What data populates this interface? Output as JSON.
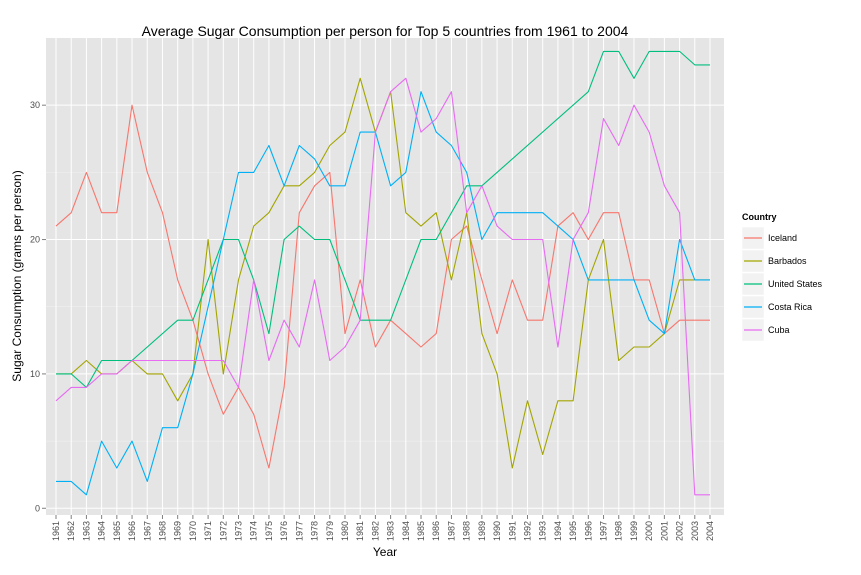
{
  "chart_data": {
    "type": "line",
    "title": "Average Sugar Consumption per person for Top 5 countries from 1961 to 2004",
    "xlabel": "Year",
    "ylabel": "Sugar Consumption (grams per person)",
    "ylim": [
      -0.5,
      35
    ],
    "yticks": [
      0,
      10,
      20,
      30
    ],
    "grid": true,
    "legend_title": "Country",
    "legend_position": "right",
    "x": [
      "1961",
      "1962",
      "1963",
      "1964",
      "1965",
      "1966",
      "1967",
      "1968",
      "1969",
      "1970",
      "1971",
      "1972",
      "1973",
      "1974",
      "1975",
      "1976",
      "1977",
      "1978",
      "1979",
      "1980",
      "1981",
      "1982",
      "1983",
      "1984",
      "1985",
      "1986",
      "1987",
      "1988",
      "1989",
      "1990",
      "1991",
      "1992",
      "1993",
      "1994",
      "1995",
      "1996",
      "1997",
      "1998",
      "1999",
      "2000",
      "2001",
      "2002",
      "2003",
      "2004"
    ],
    "series": [
      {
        "name": "Iceland",
        "color": "#F8766D",
        "values": [
          21,
          22,
          25,
          22,
          22,
          30,
          25,
          22,
          17,
          14,
          10,
          7,
          9,
          7,
          3,
          9,
          22,
          24,
          25,
          13,
          17,
          12,
          14,
          13,
          12,
          13,
          20,
          21,
          17,
          13,
          17,
          14,
          14,
          21,
          22,
          20,
          22,
          22,
          17,
          17,
          13,
          14,
          14,
          14
        ]
      },
      {
        "name": "Barbados",
        "color": "#A3A500",
        "values": [
          10,
          10,
          11,
          10,
          10,
          11,
          10,
          10,
          8,
          10,
          20,
          10,
          17,
          21,
          22,
          24,
          24,
          25,
          27,
          28,
          32,
          28,
          31,
          22,
          21,
          22,
          17,
          22,
          13,
          10,
          3,
          8,
          4,
          8,
          8,
          17,
          20,
          11,
          12,
          12,
          13,
          17,
          17,
          17
        ]
      },
      {
        "name": "United States",
        "color": "#00BF7D",
        "values": [
          10,
          10,
          9,
          11,
          11,
          11,
          null,
          null,
          14,
          14,
          null,
          20,
          20,
          17,
          13,
          20,
          21,
          20,
          20,
          null,
          14,
          14,
          14,
          null,
          20,
          20,
          null,
          24,
          24,
          null,
          null,
          null,
          null,
          null,
          null,
          31,
          34,
          34,
          32,
          34,
          34,
          34,
          33,
          33
        ]
      },
      {
        "name": "Costa Rica",
        "color": "#00B0F6",
        "values": [
          2,
          2,
          1,
          5,
          3,
          5,
          2,
          6,
          6,
          10,
          null,
          20,
          25,
          25,
          27,
          24,
          27,
          26,
          24,
          24,
          28,
          28,
          24,
          25,
          31,
          28,
          27,
          25,
          20,
          22,
          22,
          22,
          22,
          21,
          20,
          17,
          17,
          17,
          17,
          14,
          13,
          20,
          17,
          17
        ]
      },
      {
        "name": "Cuba",
        "color": "#E76BF3",
        "values": [
          8,
          9,
          9,
          10,
          10,
          11,
          11,
          11,
          11,
          11,
          11,
          11,
          9,
          17,
          11,
          14,
          12,
          17,
          11,
          12,
          14,
          28,
          31,
          32,
          28,
          29,
          31,
          22,
          24,
          21,
          20,
          20,
          20,
          12,
          20,
          22,
          29,
          27,
          30,
          28,
          24,
          22,
          1,
          1
        ]
      }
    ]
  }
}
